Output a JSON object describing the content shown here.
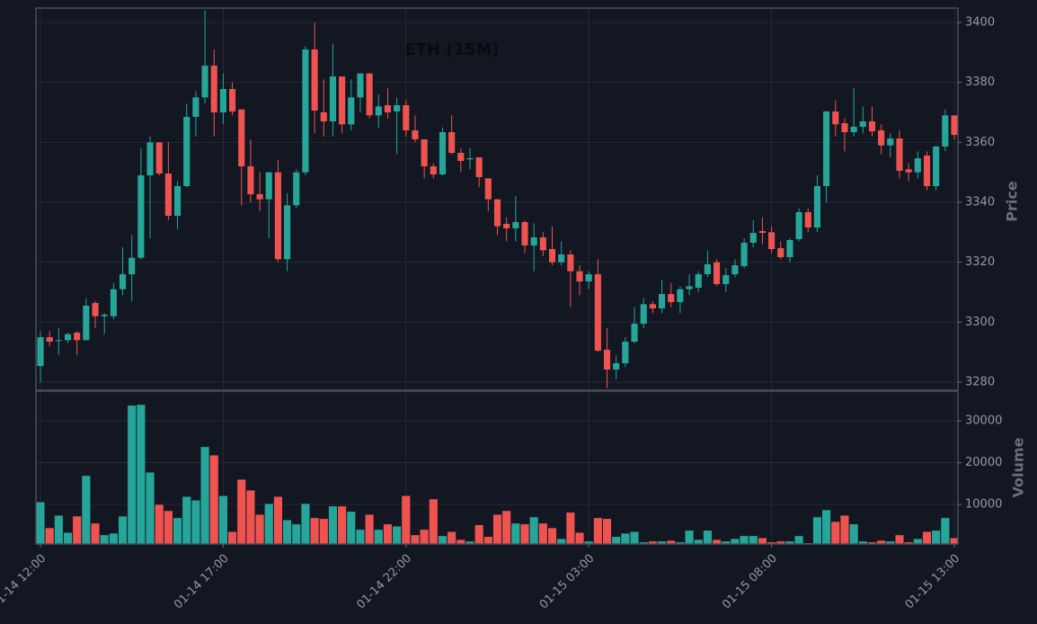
{
  "chart_data": {
    "type": "candlestick",
    "title": "ETH (15M)",
    "categories": [
      "01-14 12:00",
      null,
      null,
      null,
      null,
      null,
      null,
      null,
      null,
      null,
      null,
      null,
      null,
      null,
      null,
      null,
      null,
      null,
      null,
      null,
      "01-14 17:00",
      null,
      null,
      null,
      null,
      null,
      null,
      null,
      null,
      null,
      null,
      null,
      null,
      null,
      null,
      null,
      null,
      null,
      null,
      null,
      "01-14 22:00",
      null,
      null,
      null,
      null,
      null,
      null,
      null,
      null,
      null,
      null,
      null,
      null,
      null,
      null,
      null,
      null,
      null,
      null,
      null,
      "01-15 03:00",
      null,
      null,
      null,
      null,
      null,
      null,
      null,
      null,
      null,
      null,
      null,
      null,
      null,
      null,
      null,
      null,
      null,
      null,
      null,
      "01-15 08:00",
      null,
      null,
      null,
      null,
      null,
      null,
      null,
      null,
      null,
      null,
      null,
      null,
      null,
      null,
      null,
      null,
      null,
      null,
      null,
      "01-15 13:00"
    ],
    "open": [
      3285.4,
      3295,
      3294,
      3294,
      3296.5,
      3294,
      3306.4,
      3302,
      3302,
      3311,
      3316,
      3321.5,
      3349,
      3360,
      3349.6,
      3335.5,
      3345.4,
      3368.5,
      3375,
      3385.6,
      3370,
      3377.8,
      3371,
      3352,
      3342.7,
      3341,
      3350,
      3321,
      3339,
      3350,
      3391,
      3370,
      3367,
      3382,
      3366,
      3375,
      3383,
      3369,
      3372.4,
      3370.3,
      3372.4,
      3364,
      3361,
      3352,
      3349.3,
      3363.4,
      3356.5,
      3354.3,
      3355,
      3348,
      3341,
      3332.8,
      3331.3,
      3333.4,
      3325.6,
      3328.3,
      3324.4,
      3320,
      3322.6,
      3317,
      3313.6,
      3316,
      3290.8,
      3284.2,
      3286.3,
      3293.5,
      3299.5,
      3306,
      3304.6,
      3309.4,
      3306.7,
      3311,
      3311.5,
      3316,
      3320,
      3312.7,
      3316,
      3318.7,
      3326.5,
      3330.4,
      3330,
      3324.7,
      3321.7,
      3327.7,
      3336.7,
      3331.6,
      3345.4,
      3370.3,
      3366.4,
      3363.4,
      3365.2,
      3367,
      3364,
      3359,
      3361.3,
      3351,
      3350,
      3355.6,
      3345.4,
      3358.6,
      3369
    ],
    "high": [
      3297,
      3297,
      3298,
      3296.5,
      3297,
      3308,
      3307,
      3303,
      3313,
      3325,
      3329,
      3358,
      3362,
      3360,
      3360,
      3347,
      3373,
      3377,
      3404,
      3391,
      3383,
      3380,
      3371,
      3361,
      3350,
      3350,
      3354,
      3343,
      3351,
      3392,
      3400,
      3381,
      3393,
      3382,
      3381,
      3383,
      3383,
      3376,
      3378,
      3375,
      3374,
      3369,
      3361,
      3353,
      3365,
      3369,
      3358,
      3358,
      3355,
      3348,
      3341,
      3335,
      3342,
      3334,
      3333,
      3330,
      3332,
      3327,
      3324,
      3319,
      3317,
      3321,
      3298,
      3289,
      3295,
      3305,
      3308,
      3307,
      3314,
      3313,
      3312,
      3316,
      3317,
      3324,
      3321,
      3318,
      3321,
      3328,
      3334,
      3335,
      3332,
      3327,
      3328,
      3338,
      3338,
      3349,
      3370.5,
      3374,
      3368,
      3378,
      3372,
      3372,
      3366,
      3363,
      3364,
      3353,
      3357,
      3357,
      3359,
      3371,
      3369
    ],
    "low": [
      3280,
      3292,
      3289,
      3293,
      3289,
      3294,
      3298,
      3296,
      3301,
      3309,
      3307,
      3321,
      3328,
      3349,
      3334,
      3331,
      3345,
      3362,
      3373,
      3362,
      3366,
      3369,
      3339,
      3340,
      3337,
      3328,
      3320,
      3317,
      3338,
      3349,
      3363,
      3362,
      3362,
      3363,
      3364,
      3370,
      3368,
      3365,
      3368,
      3356,
      3362,
      3360,
      3348,
      3348,
      3349,
      3356,
      3350,
      3351,
      3345,
      3337,
      3329,
      3327,
      3327,
      3323,
      3317,
      3322,
      3319,
      3319,
      3305,
      3309,
      3311,
      3290,
      3278,
      3281,
      3285,
      3293,
      3298,
      3303,
      3303,
      3305,
      3303,
      3309,
      3310,
      3315,
      3312,
      3310,
      3315,
      3318,
      3325,
      3326,
      3323,
      3321,
      3320,
      3327,
      3330,
      3330,
      3340,
      3362,
      3357,
      3362,
      3363,
      3362,
      3356,
      3355,
      3348,
      3347,
      3348,
      3344,
      3344,
      3357,
      3361
    ],
    "close": [
      3295,
      3293.5,
      3294,
      3296,
      3294,
      3305.5,
      3302,
      3302.5,
      3311,
      3316,
      3321.5,
      3349,
      3360,
      3349.6,
      3335.5,
      3345.4,
      3368.5,
      3375,
      3385.6,
      3370,
      3377.8,
      3370.3,
      3352,
      3342.7,
      3341,
      3350,
      3321,
      3339,
      3350,
      3391,
      3370.6,
      3367,
      3382,
      3366,
      3375,
      3383,
      3369,
      3372,
      3370,
      3372.4,
      3364,
      3361,
      3352,
      3349.3,
      3363.4,
      3356.5,
      3353.8,
      3354.7,
      3348.4,
      3341,
      3332,
      3331.3,
      3333.4,
      3325.6,
      3328.3,
      3324,
      3320,
      3322.6,
      3317,
      3313.6,
      3316,
      3290.5,
      3284.2,
      3286.3,
      3293.5,
      3299.5,
      3306,
      3304.6,
      3309.4,
      3306.7,
      3311,
      3312,
      3316,
      3319.3,
      3312.7,
      3315.7,
      3319,
      3326.5,
      3329.8,
      3329.8,
      3324.4,
      3321.7,
      3327.4,
      3336.7,
      3331.6,
      3345.4,
      3370.3,
      3366,
      3363.4,
      3365.2,
      3367,
      3363.7,
      3359,
      3361.3,
      3350.5,
      3350,
      3354.7,
      3345.4,
      3358.6,
      3369,
      3362.5
    ],
    "volume": [
      10600,
      4400,
      7400,
      3300,
      7200,
      16900,
      5500,
      2700,
      3100,
      7200,
      33700,
      33900,
      17700,
      10000,
      8500,
      6800,
      11900,
      11000,
      23800,
      21800,
      12100,
      3500,
      16000,
      13400,
      7600,
      10200,
      11900,
      6300,
      5300,
      10200,
      6800,
      6600,
      9600,
      9600,
      8300,
      4000,
      7600,
      4000,
      5300,
      4800,
      12100,
      2700,
      4000,
      11300,
      2500,
      3500,
      1600,
      1200,
      5100,
      2300,
      7600,
      8500,
      5500,
      5300,
      7000,
      5500,
      4400,
      1800,
      8100,
      3300,
      1200,
      6800,
      6600,
      2300,
      3100,
      3500,
      1000,
      1200,
      1200,
      1400,
      1000,
      3800,
      1600,
      3800,
      1600,
      1200,
      1800,
      2500,
      2500,
      2000,
      1000,
      1200,
      1200,
      2500,
      800,
      7000,
      8700,
      5900,
      7400,
      5300,
      1200,
      1000,
      1400,
      1200,
      2700,
      1000,
      1800,
      3500,
      3800,
      6800,
      2000
    ],
    "ylim": [
      3277.3,
      3404.5
    ],
    "yticks": [
      3280,
      3300,
      3320,
      3340,
      3360,
      3380,
      3400
    ],
    "y_label": "Price",
    "volume_ylim": [
      540,
      36900
    ],
    "volume_yticks": [
      10000,
      20000,
      30000
    ],
    "volume_label": "Volume",
    "up_color": "#26a69a",
    "down_color": "#ef5350",
    "grid": true
  }
}
